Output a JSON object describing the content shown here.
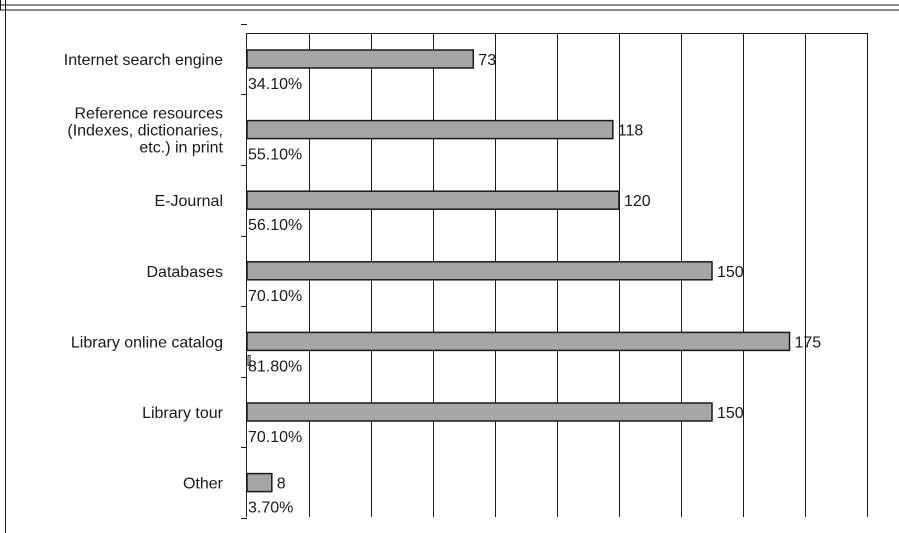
{
  "chart_data": {
    "type": "bar",
    "orientation": "horizontal",
    "title": "",
    "xlabel": "",
    "ylabel": "",
    "xlim": [
      0,
      200
    ],
    "grid": true,
    "legend": "none",
    "categories": [
      "Internet search engine",
      "Reference resources (Indexes, dictionaries, etc.) in print",
      "E-Journal",
      "Databases",
      "Library online catalog",
      "Library tour",
      "Other"
    ],
    "category_lines": [
      [
        "Internet search engine"
      ],
      [
        "Reference resources",
        "(Indexes, dictionaries,",
        "etc.) in print"
      ],
      [
        "E-Journal"
      ],
      [
        "Databases"
      ],
      [
        "Library online catalog"
      ],
      [
        "Library tour"
      ],
      [
        "Other"
      ]
    ],
    "values": [
      73,
      118,
      120,
      150,
      175,
      150,
      8
    ],
    "value_labels": [
      "73",
      "118",
      "120",
      "150",
      "175",
      "150",
      "8"
    ],
    "percent_labels": [
      "34.10%",
      "55.10%",
      "56.10%",
      "70.10%",
      "81.80%",
      "70.10%",
      "3.70%"
    ],
    "colors": {
      "bar": "#a6a6a6",
      "bar_stroke": "#1a1a1a",
      "grid": "#1a1a1a",
      "frame": "#1a1a1a"
    }
  }
}
